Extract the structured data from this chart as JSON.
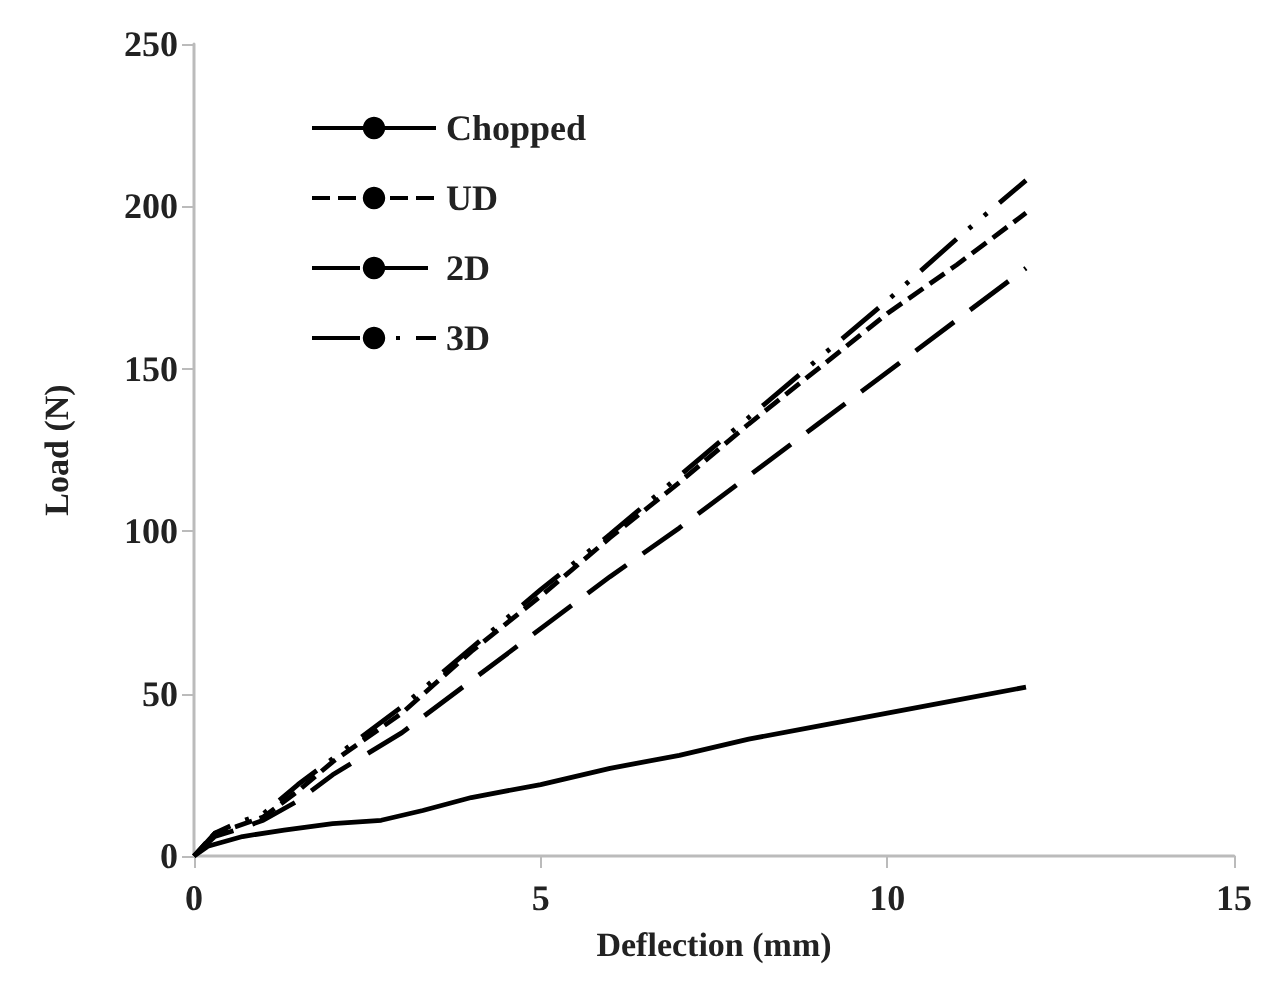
{
  "chart_data": {
    "type": "line",
    "xlabel": "Deflection (mm)",
    "ylabel": "Load (N)",
    "xlim": [
      0,
      15
    ],
    "xticks": [
      0,
      5,
      10,
      15
    ],
    "ylim": [
      0,
      250
    ],
    "yticks": [
      0,
      50,
      100,
      150,
      200,
      250
    ],
    "grid": false,
    "legend": "top left",
    "marker": "none",
    "series": [
      {
        "name": "Chopped",
        "color": "#000000",
        "line_style": "solid",
        "x": [
          0,
          0.2,
          0.7,
          1.3,
          2,
          2.7,
          3.3,
          4,
          5,
          6,
          7,
          8,
          9,
          10,
          11,
          12
        ],
        "values": [
          0,
          3,
          6,
          8,
          10,
          11,
          14,
          18,
          22,
          27,
          31,
          36,
          40,
          44,
          48,
          52
        ]
      },
      {
        "name": "UD",
        "color": "#000000",
        "line_style": "dashed",
        "x": [
          0,
          0.3,
          0.6,
          1,
          1.5,
          2,
          3,
          4,
          5,
          6,
          7,
          8,
          9,
          10,
          11,
          12
        ],
        "values": [
          0,
          7,
          9,
          12,
          20,
          29,
          44,
          63,
          80,
          98,
          115,
          133,
          150,
          167,
          182,
          198
        ]
      },
      {
        "name": "2D",
        "color": "#000000",
        "line_style": "dashed",
        "x": [
          0,
          0.3,
          0.6,
          1,
          1.5,
          2,
          3,
          4,
          5,
          6,
          7,
          8,
          9,
          10,
          11,
          12
        ],
        "values": [
          0,
          6,
          8,
          11,
          17,
          25,
          38,
          54,
          70,
          86,
          101,
          117,
          133,
          149,
          165,
          181
        ]
      },
      {
        "name": "3D",
        "color": "#000000",
        "line_style": "dashed",
        "x": [
          0,
          0.3,
          0.6,
          1,
          1.5,
          2,
          3,
          4,
          5,
          6,
          7,
          8,
          9,
          10,
          11,
          12
        ],
        "values": [
          0,
          7,
          10,
          13,
          22,
          30,
          46,
          64,
          82,
          99,
          117,
          135,
          153,
          171,
          190,
          208
        ]
      }
    ]
  }
}
